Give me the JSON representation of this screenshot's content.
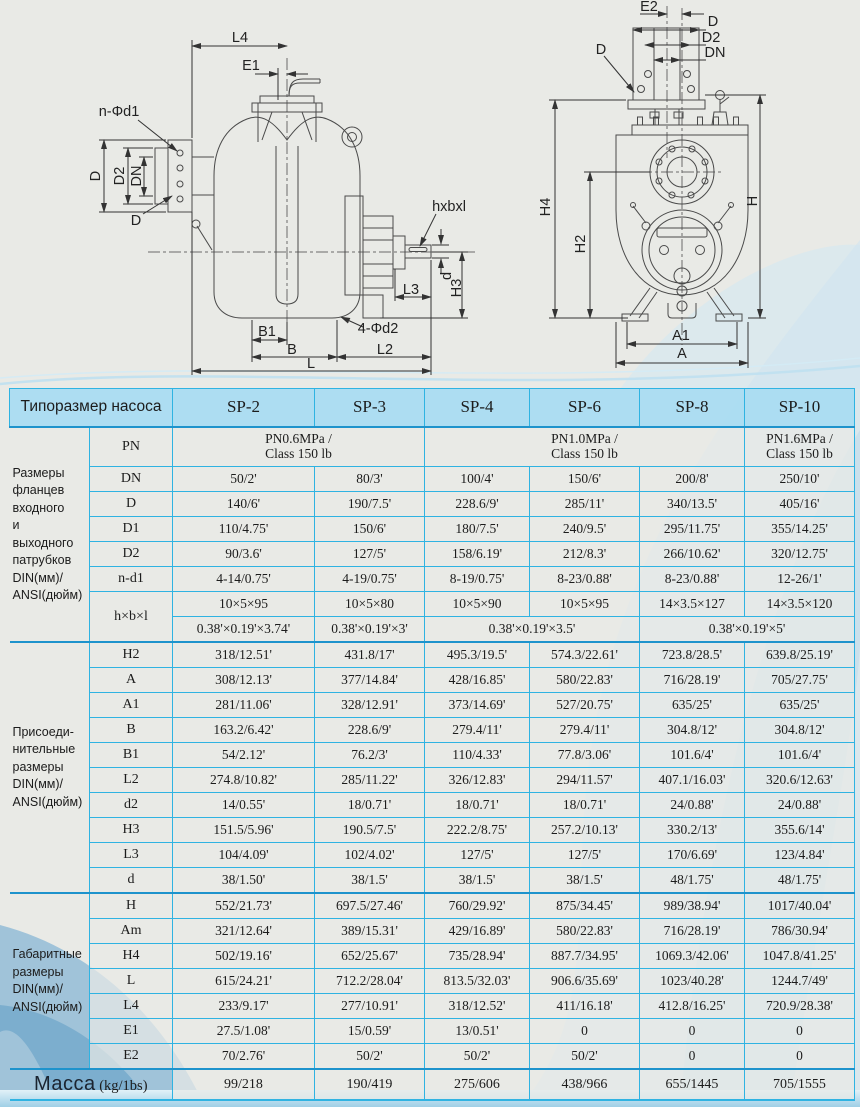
{
  "colors": {
    "page_bg": "#e9eae6",
    "header_bg": "#aadcf2",
    "grid_border": "#2fb3e2",
    "group_separator": "#1e93cc",
    "wave_blue": "#8db9d6",
    "text": "#1c1c1c"
  },
  "drawing_labels": {
    "side": {
      "l4": "L4",
      "e1": "E1",
      "n_d1": "n-Φd1",
      "d_flange": "D",
      "d2_flange": "D2",
      "dn_flange": "DN",
      "d_leader": "D",
      "hxbxl": "hxbxl",
      "d_shaft": "d",
      "h3": "H3",
      "l3": "L3",
      "b1": "B1",
      "b": "B",
      "four_d2": "4-Φd2",
      "l2": "L2",
      "l": "L"
    },
    "front": {
      "e2": "E2",
      "d_top": "D",
      "d2_top": "D2",
      "dn_top": "DN",
      "d_leader": "D",
      "h4": "H4",
      "h2": "H2",
      "h": "H",
      "a1": "A1",
      "a": "A"
    }
  },
  "table": {
    "top": "Типоразмер насоса",
    "models": [
      "SP-2",
      "SP-3",
      "SP-4",
      "SP-6",
      "SP-8",
      "SP-10"
    ],
    "groups": [
      {
        "label": "Размеры\nфланцев\nвходного\nи\nвыходного\nпатрубков\nDIN(мм)/\nANSI(дюйм)",
        "rows": [
          {
            "param": "PN",
            "tall": true,
            "cells": [
              {
                "t": "PN0.6MPa /\nClass 150 lb",
                "s": 2
              },
              {
                "t": "PN1.0MPa /\nClass 150 lb",
                "s": 3
              },
              {
                "t": "PN1.6MPa /\nClass 150 lb",
                "s": 1
              }
            ]
          },
          {
            "param": "DN",
            "cells": [
              "50/2'",
              "80/3'",
              "100/4'",
              "150/6'",
              "200/8'",
              "250/10'"
            ]
          },
          {
            "param": "D",
            "cells": [
              "140/6'",
              "190/7.5'",
              "228.6/9'",
              "285/11'",
              "340/13.5'",
              "405/16'"
            ]
          },
          {
            "param": "D1",
            "cells": [
              "110/4.75'",
              "150/6'",
              "180/7.5'",
              "240/9.5'",
              "295/11.75'",
              "355/14.25'"
            ]
          },
          {
            "param": "D2",
            "cells": [
              "90/3.6'",
              "127/5'",
              "158/6.19'",
              "212/8.3'",
              "266/10.62'",
              "320/12.75'"
            ]
          },
          {
            "param": "n-d1",
            "cells": [
              "4-14/0.75'",
              "4-19/0.75'",
              "8-19/0.75'",
              "8-23/0.88'",
              "8-23/0.88'",
              "12-26/1'"
            ]
          },
          {
            "param": "h×b×l",
            "prowspan": 2,
            "cells": [
              "10×5×95",
              "10×5×80",
              "10×5×90",
              "10×5×95",
              "14×3.5×127",
              "14×3.5×120"
            ]
          },
          {
            "param": null,
            "cells": [
              {
                "t": "0.38'×0.19'×3.74'",
                "s": 1
              },
              {
                "t": "0.38'×0.19'×3'",
                "s": 1
              },
              {
                "t": "0.38'×0.19'×3.5'",
                "s": 2
              },
              {
                "t": "0.38'×0.19'×5'",
                "s": 2
              }
            ]
          }
        ]
      },
      {
        "label": "Присоеди-\nнительные\nразмеры\nDIN(мм)/\nANSI(дюйм)",
        "rows": [
          {
            "param": "H2",
            "cells": [
              "318/12.51'",
              "431.8/17'",
              "495.3/19.5'",
              "574.3/22.61'",
              "723.8/28.5'",
              "639.8/25.19'"
            ]
          },
          {
            "param": "A",
            "cells": [
              "308/12.13'",
              "377/14.84'",
              "428/16.85'",
              "580/22.83'",
              "716/28.19'",
              "705/27.75'"
            ]
          },
          {
            "param": "A1",
            "cells": [
              "281/11.06'",
              "328/12.91'",
              "373/14.69'",
              "527/20.75'",
              "635/25'",
              "635/25'"
            ]
          },
          {
            "param": "B",
            "cells": [
              "163.2/6.42'",
              "228.6/9'",
              "279.4/11'",
              "279.4/11'",
              "304.8/12'",
              "304.8/12'"
            ]
          },
          {
            "param": "B1",
            "cells": [
              "54/2.12'",
              "76.2/3'",
              "110/4.33'",
              "77.8/3.06'",
              "101.6/4'",
              "101.6/4'"
            ]
          },
          {
            "param": "L2",
            "cells": [
              "274.8/10.82'",
              "285/11.22'",
              "326/12.83'",
              "294/11.57'",
              "407.1/16.03'",
              "320.6/12.63'"
            ]
          },
          {
            "param": "d2",
            "cells": [
              "14/0.55'",
              "18/0.71'",
              "18/0.71'",
              "18/0.71'",
              "24/0.88'",
              "24/0.88'"
            ]
          },
          {
            "param": "H3",
            "cells": [
              "151.5/5.96'",
              "190.5/7.5'",
              "222.2/8.75'",
              "257.2/10.13'",
              "330.2/13'",
              "355.6/14'"
            ]
          },
          {
            "param": "L3",
            "cells": [
              "104/4.09'",
              "102/4.02'",
              "127/5'",
              "127/5'",
              "170/6.69'",
              "123/4.84'"
            ]
          },
          {
            "param": "d",
            "cells": [
              "38/1.50'",
              "38/1.5'",
              "38/1.5'",
              "38/1.5'",
              "48/1.75'",
              "48/1.75'"
            ]
          }
        ]
      },
      {
        "label": "Габаритные\nразмеры\nDIN(мм)/\nANSI(дюйм)",
        "rows": [
          {
            "param": "H",
            "cells": [
              "552/21.73'",
              "697.5/27.46'",
              "760/29.92'",
              "875/34.45'",
              "989/38.94'",
              "1017/40.04'"
            ]
          },
          {
            "param": "Am",
            "cells": [
              "321/12.64'",
              "389/15.31'",
              "429/16.89'",
              "580/22.83'",
              "716/28.19'",
              "786/30.94'"
            ]
          },
          {
            "param": "H4",
            "cells": [
              "502/19.16'",
              "652/25.67'",
              "735/28.94'",
              "887.7/34.95'",
              "1069.3/42.06'",
              "1047.8/41.25'"
            ]
          },
          {
            "param": "L",
            "cells": [
              "615/24.21'",
              "712.2/28.04'",
              "813.5/32.03'",
              "906.6/35.69'",
              "1023/40.28'",
              "1244.7/49'"
            ]
          },
          {
            "param": "L4",
            "cells": [
              "233/9.17'",
              "277/10.91'",
              "318/12.52'",
              "411/16.18'",
              "412.8/16.25'",
              "720.9/28.38'"
            ]
          },
          {
            "param": "E1",
            "cells": [
              "27.5/1.08'",
              "15/0.59'",
              "13/0.51'",
              "0",
              "0",
              "0"
            ]
          },
          {
            "param": "E2",
            "cells": [
              "70/2.76'",
              "50/2'",
              "50/2'",
              "50/2'",
              "0",
              "0"
            ]
          }
        ]
      }
    ],
    "mass": {
      "label": "Масса",
      "unit": "(kg/1bs)",
      "cells": [
        "99/218",
        "190/419",
        "275/606",
        "438/966",
        "655/1445",
        "705/1555"
      ]
    }
  }
}
